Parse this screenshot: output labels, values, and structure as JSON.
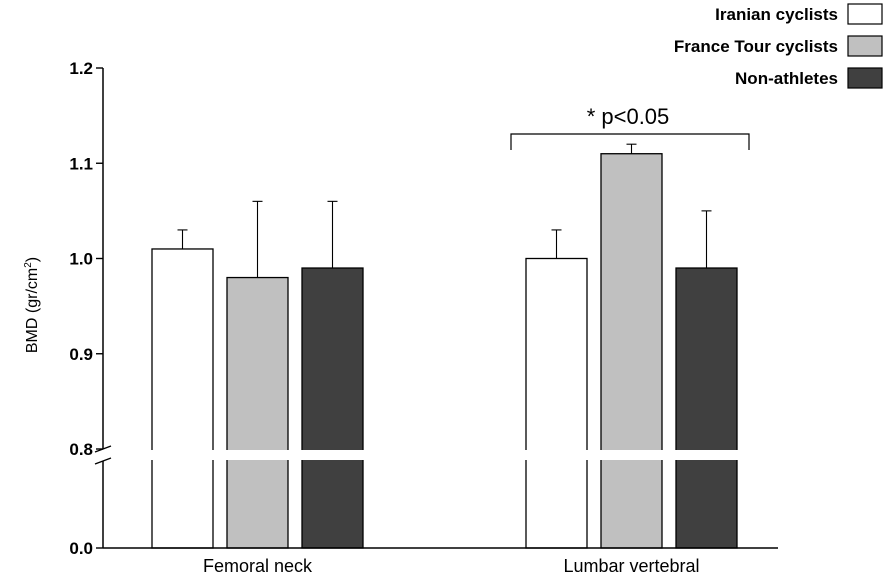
{
  "chart_data": {
    "type": "bar",
    "categories": [
      "Femoral neck",
      "Lumbar vertebral"
    ],
    "series": [
      {
        "name": "Iranian cyclists",
        "values": [
          1.01,
          1.0
        ],
        "errors": [
          0.02,
          0.03
        ],
        "color": "#ffffff"
      },
      {
        "name": "France Tour cyclists",
        "values": [
          0.98,
          1.11
        ],
        "errors": [
          0.08,
          0.01
        ],
        "color": "#c0c0c0"
      },
      {
        "name": "Non-athletes",
        "values": [
          0.99,
          0.99
        ],
        "errors": [
          0.07,
          0.06
        ],
        "color": "#404040"
      }
    ],
    "ylabel_main": "BMD (gr/cm",
    "ylabel_sup": "2",
    "ylabel_end": ")",
    "yticks": [
      "0.0",
      "0.8",
      "0.9",
      "1.0",
      "1.1",
      "1.2"
    ],
    "ylim": [
      0.8,
      1.2
    ],
    "axis_break": true,
    "legend_position": "top-right",
    "annotation": "* p<0.05",
    "grid": false
  }
}
